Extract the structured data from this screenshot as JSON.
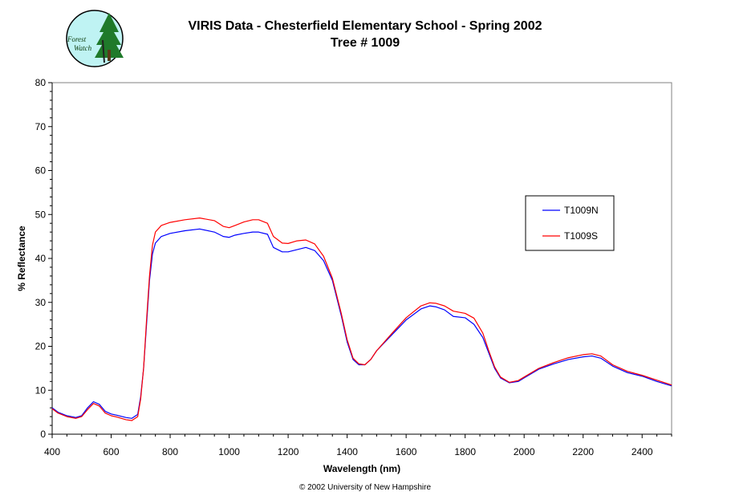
{
  "chart_data": {
    "type": "line",
    "title": "VIRIS Data - Chesterfield Elementary School - Spring 2002",
    "subtitle": "Tree # 1009",
    "xlabel": "Wavelength (nm)",
    "ylabel": "% Reflectance",
    "xlim": [
      400,
      2500
    ],
    "ylim": [
      0,
      80
    ],
    "xticks": [
      400,
      600,
      800,
      1000,
      1200,
      1400,
      1600,
      1800,
      2000,
      2200,
      2400
    ],
    "yticks": [
      0,
      10,
      20,
      30,
      40,
      50,
      60,
      70,
      80
    ],
    "grid": false,
    "legend_position": "right",
    "series": [
      {
        "name": "T1009N",
        "color": "#0000ff",
        "x": [
          400,
          420,
          450,
          480,
          500,
          520,
          540,
          560,
          580,
          600,
          620,
          650,
          670,
          690,
          700,
          710,
          720,
          730,
          740,
          750,
          770,
          800,
          850,
          900,
          950,
          980,
          1000,
          1020,
          1050,
          1080,
          1100,
          1130,
          1150,
          1180,
          1200,
          1230,
          1260,
          1290,
          1320,
          1350,
          1380,
          1400,
          1420,
          1440,
          1460,
          1480,
          1500,
          1550,
          1600,
          1650,
          1680,
          1700,
          1730,
          1760,
          1800,
          1830,
          1860,
          1880,
          1900,
          1920,
          1950,
          1980,
          2000,
          2050,
          2100,
          2150,
          2200,
          2230,
          2260,
          2300,
          2350,
          2400,
          2450,
          2500
        ],
        "y": [
          6.0,
          5.0,
          4.2,
          3.8,
          4.2,
          6.0,
          7.4,
          6.8,
          5.2,
          4.6,
          4.3,
          3.8,
          3.6,
          4.5,
          8.5,
          15.0,
          25.0,
          35.0,
          41.0,
          43.5,
          45.0,
          45.7,
          46.3,
          46.7,
          46.0,
          45.0,
          44.8,
          45.3,
          45.7,
          46.0,
          46.0,
          45.5,
          42.5,
          41.5,
          41.5,
          42.0,
          42.5,
          41.8,
          39.5,
          35.0,
          27.0,
          21.0,
          17.0,
          15.8,
          15.8,
          17.0,
          19.0,
          22.5,
          26.0,
          28.5,
          29.2,
          29.0,
          28.3,
          26.8,
          26.5,
          25.0,
          22.0,
          18.5,
          15.0,
          12.8,
          11.7,
          12.0,
          12.8,
          14.8,
          16.0,
          17.0,
          17.6,
          17.8,
          17.3,
          15.5,
          14.0,
          13.2,
          12.0,
          11.0
        ]
      },
      {
        "name": "T1009S",
        "color": "#ff0000",
        "x": [
          400,
          420,
          450,
          480,
          500,
          520,
          540,
          560,
          580,
          600,
          620,
          650,
          670,
          690,
          700,
          710,
          720,
          730,
          740,
          750,
          770,
          800,
          850,
          900,
          950,
          980,
          1000,
          1020,
          1050,
          1080,
          1100,
          1130,
          1150,
          1180,
          1200,
          1230,
          1260,
          1290,
          1320,
          1350,
          1380,
          1400,
          1420,
          1440,
          1460,
          1480,
          1500,
          1550,
          1600,
          1650,
          1680,
          1700,
          1730,
          1760,
          1800,
          1830,
          1860,
          1880,
          1900,
          1920,
          1950,
          1980,
          2000,
          2050,
          2100,
          2150,
          2200,
          2230,
          2260,
          2300,
          2350,
          2400,
          2450,
          2500
        ],
        "y": [
          5.8,
          4.8,
          4.0,
          3.6,
          4.0,
          5.6,
          7.0,
          6.4,
          4.8,
          4.2,
          3.9,
          3.3,
          3.1,
          4.0,
          8.0,
          15.0,
          26.0,
          36.0,
          43.0,
          46.0,
          47.5,
          48.2,
          48.8,
          49.2,
          48.6,
          47.3,
          47.0,
          47.5,
          48.3,
          48.8,
          48.8,
          48.0,
          45.0,
          43.5,
          43.4,
          44.0,
          44.2,
          43.3,
          40.5,
          35.5,
          27.5,
          21.5,
          17.3,
          16.0,
          15.8,
          17.0,
          19.0,
          22.8,
          26.5,
          29.2,
          29.9,
          29.8,
          29.2,
          28.0,
          27.5,
          26.4,
          23.0,
          19.0,
          15.3,
          13.0,
          11.8,
          12.2,
          13.0,
          15.0,
          16.3,
          17.4,
          18.1,
          18.3,
          17.8,
          15.8,
          14.3,
          13.4,
          12.3,
          11.2
        ]
      }
    ]
  },
  "logo": {
    "line1": "Forest",
    "line2": "Watch"
  },
  "copyright": "© 2002 University of New Hampshire"
}
